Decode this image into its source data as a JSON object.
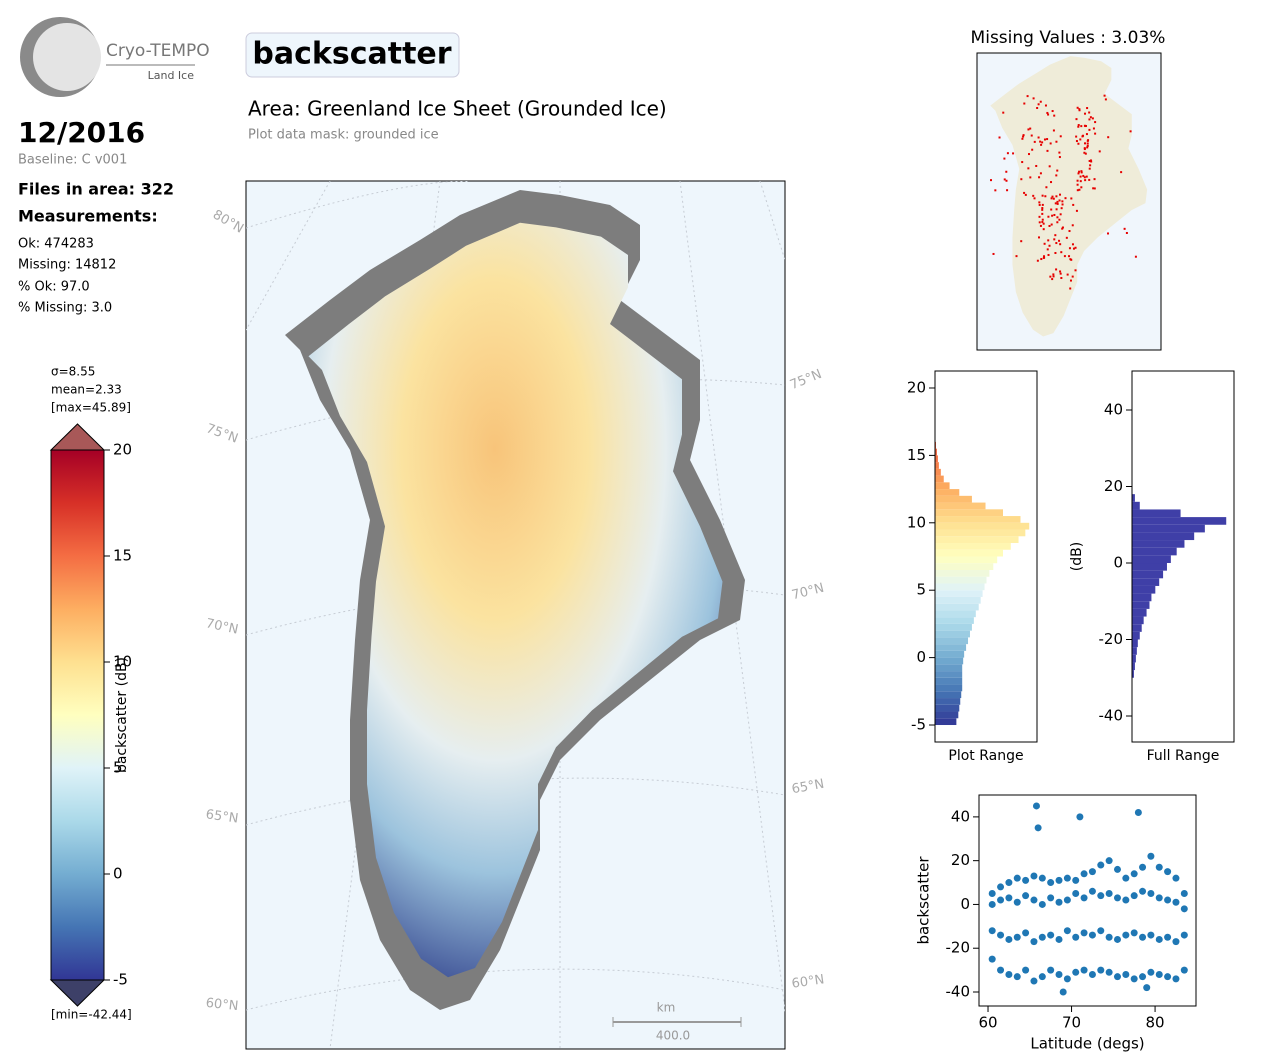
{
  "header": {
    "logo_title": "Cryo-TEMPO",
    "logo_subtitle": "Land Ice",
    "date": "12/2016",
    "baseline": "Baseline: C v001",
    "files": "Files in area: 322",
    "measurements_heading": "Measurements:",
    "stats": [
      "Ok: 474283",
      "Missing: 14812",
      "% Ok: 97.0",
      "% Missing: 3.0"
    ]
  },
  "main": {
    "title": "backscatter",
    "area": "Area: Greenland Ice Sheet (Grounded Ice)",
    "mask": "Plot data mask: grounded ice"
  },
  "map": {
    "lat_labels_left": [
      "80°N",
      "75°N",
      "70°N",
      "65°N",
      "60°N"
    ],
    "lat_labels_right": [
      "75°N",
      "70°N",
      "65°N",
      "60°N"
    ],
    "scale_unit": "km",
    "scale_length": "400.0"
  },
  "missing_map": {
    "title": "Missing Values : 3.03%"
  },
  "chart_data": [
    {
      "type": "colorbar",
      "annotations": [
        "σ=8.55",
        "mean=2.33",
        "[max=45.89]",
        "[min=-42.44]"
      ],
      "ylabel": "backscatter (dB)",
      "ylim": [
        -5,
        20
      ],
      "yticks": [
        20,
        15,
        10,
        5,
        0,
        -5
      ],
      "colors": [
        "#313695",
        "#4575b4",
        "#74add1",
        "#abd9e9",
        "#e0f3f8",
        "#ffffbf",
        "#fee090",
        "#fdae61",
        "#f46d43",
        "#d73027",
        "#a50026"
      ],
      "over_color": "#a85858",
      "under_color": "#3d4068"
    },
    {
      "type": "histogram",
      "orientation": "horizontal",
      "xlabel": "Plot Range",
      "bins": [
        -5,
        -4.5,
        -4,
        -3.5,
        -3,
        -2.5,
        -2,
        -1.5,
        -1,
        -0.5,
        0,
        0.5,
        1,
        1.5,
        2,
        2.5,
        3,
        3.5,
        4,
        4.5,
        5,
        5.5,
        6,
        6.5,
        7,
        7.5,
        8,
        8.5,
        9,
        9.5,
        10,
        10.5,
        11,
        11.5,
        12,
        12.5,
        13,
        13.5,
        14,
        14.5,
        15,
        15.5,
        16
      ],
      "values": [
        22,
        24,
        25,
        26,
        27,
        28,
        28,
        28,
        28,
        29,
        30,
        32,
        34,
        36,
        38,
        40,
        42,
        45,
        47,
        49,
        51,
        53,
        56,
        60,
        64,
        70,
        78,
        86,
        93,
        97,
        88,
        70,
        52,
        38,
        25,
        15,
        9,
        6,
        4,
        3,
        2,
        1
      ],
      "xlim": [
        0,
        105
      ],
      "ylim": [
        -6.26,
        21.26
      ],
      "yticks": [
        20,
        15,
        10,
        5,
        0,
        -5
      ]
    },
    {
      "type": "histogram",
      "orientation": "horizontal",
      "xlabel": "Full Range",
      "ylabel": "(dB)",
      "color": "#3f3fa7",
      "bins": [
        -30,
        -28,
        -26,
        -24,
        -22,
        -20,
        -18,
        -16,
        -14,
        -12,
        -10,
        -8,
        -6,
        -4,
        -2,
        0,
        2,
        4,
        6,
        8,
        10,
        12,
        14,
        16,
        18
      ],
      "values": [
        2,
        3,
        4,
        5,
        6,
        8,
        10,
        12,
        15,
        18,
        20,
        24,
        28,
        32,
        36,
        40,
        46,
        54,
        64,
        75,
        97,
        50,
        8,
        3
      ],
      "xlim": [
        0,
        105
      ],
      "ylim": [
        -46.8,
        50.2
      ],
      "yticks": [
        40,
        20,
        0,
        -20,
        -40
      ]
    },
    {
      "type": "scatter",
      "xlabel": "Latitude (degs)",
      "ylabel": "backscatter",
      "color": "#1f77b4",
      "xlim": [
        58.92,
        84.9
      ],
      "xticks": [
        60,
        70,
        80
      ],
      "ylim": [
        -46.4,
        50.0
      ],
      "yticks": [
        40,
        20,
        0,
        -20,
        -40
      ],
      "x": [
        60.5,
        60.5,
        60.5,
        60.5,
        61.5,
        61.5,
        61.5,
        61.5,
        62.5,
        62.5,
        62.5,
        62.5,
        63.5,
        63.5,
        63.5,
        63.5,
        64.5,
        64.5,
        64.5,
        64.5,
        65.5,
        65.5,
        65.5,
        65.5,
        66.5,
        66.5,
        66.5,
        66.5,
        67.5,
        67.5,
        67.5,
        67.5,
        68.5,
        68.5,
        68.5,
        68.5,
        69.5,
        69.5,
        69.5,
        69.5,
        70.5,
        70.5,
        70.5,
        70.5,
        71.5,
        71.5,
        71.5,
        71.5,
        72.5,
        72.5,
        72.5,
        72.5,
        73.5,
        73.5,
        73.5,
        73.5,
        74.5,
        74.5,
        74.5,
        74.5,
        75.5,
        75.5,
        75.5,
        75.5,
        76.5,
        76.5,
        76.5,
        76.5,
        77.5,
        77.5,
        77.5,
        77.5,
        78.5,
        78.5,
        78.5,
        78.5,
        79.5,
        79.5,
        79.5,
        79.5,
        80.5,
        80.5,
        80.5,
        80.5,
        81.5,
        81.5,
        81.5,
        81.5,
        82.5,
        82.5,
        82.5,
        82.5,
        83.5,
        83.5,
        83.5,
        83.5,
        65.8,
        66,
        71,
        78,
        69,
        79
      ],
      "values": [
        5,
        0,
        -12,
        -25,
        8,
        2,
        -14,
        -30,
        10,
        3,
        -16,
        -32,
        12,
        1,
        -15,
        -33,
        11,
        4,
        -13,
        -30,
        13,
        2,
        -17,
        -35,
        12,
        0,
        -15,
        -33,
        10,
        3,
        -14,
        -30,
        11,
        1,
        -16,
        -32,
        12,
        2,
        -12,
        -34,
        11,
        5,
        -15,
        -31,
        14,
        3,
        -13,
        -30,
        15,
        6,
        -14,
        -32,
        18,
        4,
        -12,
        -30,
        20,
        5,
        -15,
        -31,
        16,
        3,
        -16,
        -33,
        12,
        2,
        -14,
        -32,
        14,
        4,
        -13,
        -34,
        17,
        6,
        -15,
        -33,
        22,
        5,
        -14,
        -31,
        17,
        3,
        -16,
        -32,
        15,
        2,
        -15,
        -33,
        12,
        1,
        -17,
        -34,
        5,
        -2,
        -14,
        -30,
        45,
        35,
        40,
        42,
        -40,
        -38
      ]
    }
  ]
}
